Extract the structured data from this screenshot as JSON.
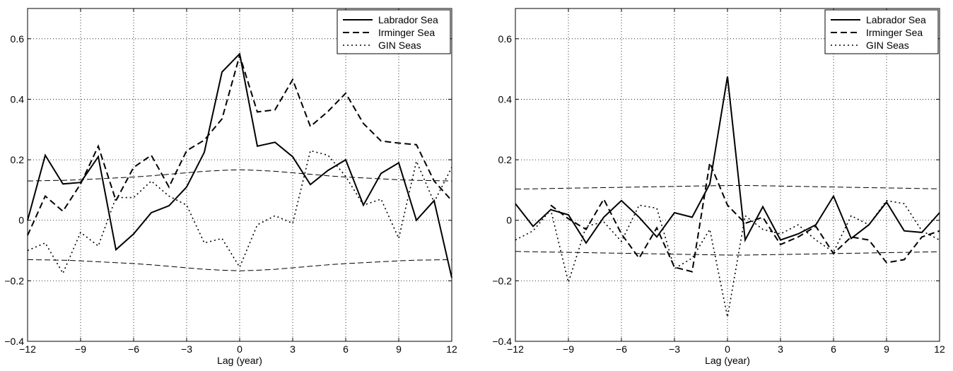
{
  "chart_data": [
    {
      "type": "line",
      "xlabel": "Lag (year)",
      "ylabel": "",
      "title": "",
      "xlim": [
        -12,
        12
      ],
      "ylim": [
        -0.4,
        0.7
      ],
      "xticks": [
        -12,
        -9,
        -6,
        -3,
        0,
        3,
        6,
        9,
        12
      ],
      "yticks": [
        -0.4,
        -0.2,
        0,
        0.2,
        0.4,
        0.6
      ],
      "xtick_labels": [
        "−12",
        "−9",
        "−6",
        "−3",
        "0",
        "3",
        "6",
        "9",
        "12"
      ],
      "ytick_labels": [
        "−0.4",
        "−0.2",
        "0",
        "0.2",
        "0.4",
        "0.6"
      ],
      "grid": true,
      "legend_position": "top-right",
      "x": [
        -12,
        -11,
        -10,
        -9,
        -8,
        -7,
        -6,
        -5,
        -4,
        -3,
        -2,
        -1,
        0,
        1,
        2,
        3,
        4,
        5,
        6,
        7,
        8,
        9,
        10,
        11,
        12
      ],
      "series": [
        {
          "name": "Labrador Sea",
          "style": "solid",
          "values": [
            0.0,
            0.215,
            0.12,
            0.125,
            0.21,
            -0.097,
            -0.045,
            0.025,
            0.048,
            0.11,
            0.225,
            0.49,
            0.55,
            0.245,
            0.258,
            0.21,
            0.118,
            0.165,
            0.2,
            0.05,
            0.155,
            0.19,
            0.0,
            0.065,
            -0.19
          ]
        },
        {
          "name": "Irminger Sea",
          "style": "dashed",
          "values": [
            -0.05,
            0.08,
            0.03,
            0.12,
            0.245,
            0.065,
            0.175,
            0.215,
            0.11,
            0.23,
            0.265,
            0.335,
            0.545,
            0.358,
            0.365,
            0.465,
            0.31,
            0.36,
            0.42,
            0.32,
            0.262,
            0.255,
            0.25,
            0.13,
            0.065
          ]
        },
        {
          "name": "GIN Seas",
          "style": "dotted",
          "values": [
            -0.1,
            -0.075,
            -0.175,
            -0.04,
            -0.085,
            0.075,
            0.075,
            0.13,
            0.08,
            0.05,
            -0.075,
            -0.06,
            -0.155,
            -0.015,
            0.015,
            -0.01,
            0.23,
            0.215,
            0.145,
            0.05,
            0.07,
            -0.06,
            0.195,
            0.06,
            0.175
          ]
        }
      ],
      "bands": [
        {
          "style": "thin-dashed",
          "values": [
            0.13,
            0.131,
            0.132,
            0.134,
            0.137,
            0.14,
            0.143,
            0.147,
            0.152,
            0.157,
            0.162,
            0.165,
            0.167,
            0.165,
            0.162,
            0.157,
            0.152,
            0.147,
            0.143,
            0.14,
            0.137,
            0.134,
            0.132,
            0.131,
            0.13
          ]
        },
        {
          "style": "thin-dashed",
          "values": [
            -0.13,
            -0.131,
            -0.132,
            -0.134,
            -0.137,
            -0.14,
            -0.143,
            -0.147,
            -0.152,
            -0.157,
            -0.162,
            -0.165,
            -0.167,
            -0.165,
            -0.162,
            -0.157,
            -0.152,
            -0.147,
            -0.143,
            -0.14,
            -0.137,
            -0.134,
            -0.132,
            -0.131,
            -0.13
          ]
        }
      ]
    },
    {
      "type": "line",
      "xlabel": "Lag (year)",
      "ylabel": "",
      "title": "",
      "xlim": [
        -12,
        12
      ],
      "ylim": [
        -0.4,
        0.7
      ],
      "xticks": [
        -12,
        -9,
        -6,
        -3,
        0,
        3,
        6,
        9,
        12
      ],
      "yticks": [
        -0.4,
        -0.2,
        0,
        0.2,
        0.4,
        0.6
      ],
      "xtick_labels": [
        "−12",
        "−9",
        "−6",
        "−3",
        "0",
        "3",
        "6",
        "9",
        "12"
      ],
      "ytick_labels": [
        "−0.4",
        "−0.2",
        "0",
        "0.2",
        "0.4",
        "0.6"
      ],
      "grid": true,
      "legend_position": "top-right",
      "x": [
        -12,
        -11,
        -10,
        -9,
        -8,
        -7,
        -6,
        -5,
        -4,
        -3,
        -2,
        -1,
        0,
        1,
        2,
        3,
        4,
        5,
        6,
        7,
        8,
        9,
        10,
        11,
        12
      ],
      "series": [
        {
          "name": "Labrador Sea",
          "style": "solid",
          "values": [
            0.055,
            -0.02,
            0.035,
            0.018,
            -0.075,
            0.01,
            0.065,
            0.01,
            -0.055,
            0.025,
            0.01,
            0.12,
            0.475,
            -0.065,
            0.045,
            -0.065,
            -0.045,
            -0.015,
            0.08,
            -0.06,
            -0.015,
            0.06,
            -0.035,
            -0.04,
            0.025
          ]
        },
        {
          "name": "Irminger Sea",
          "style": "dashed",
          "values": [
            null,
            null,
            0.05,
            0.005,
            -0.03,
            0.07,
            -0.045,
            -0.125,
            -0.025,
            -0.155,
            -0.17,
            0.19,
            0.05,
            -0.01,
            0.01,
            -0.08,
            -0.055,
            -0.02,
            -0.11,
            -0.055,
            -0.065,
            -0.14,
            -0.13,
            -0.055,
            -0.035
          ]
        },
        {
          "name": "GIN Seas",
          "style": "dotted",
          "values": [
            -0.065,
            -0.035,
            0.035,
            -0.205,
            -0.02,
            -0.005,
            -0.07,
            0.05,
            0.04,
            -0.16,
            -0.125,
            -0.03,
            -0.32,
            0.015,
            -0.03,
            -0.045,
            -0.015,
            -0.065,
            -0.105,
            0.015,
            -0.015,
            0.065,
            0.055,
            -0.035,
            -0.065
          ]
        }
      ],
      "bands": [
        {
          "style": "thin-dashed",
          "values": [
            0.103,
            0.104,
            0.105,
            0.106,
            0.107,
            0.108,
            0.109,
            0.11,
            0.111,
            0.112,
            0.113,
            0.114,
            0.115,
            0.115,
            0.114,
            0.113,
            0.112,
            0.111,
            0.11,
            0.109,
            0.108,
            0.107,
            0.106,
            0.105,
            0.104
          ]
        },
        {
          "style": "thin-dashed",
          "values": [
            -0.103,
            -0.104,
            -0.105,
            -0.106,
            -0.107,
            -0.108,
            -0.109,
            -0.11,
            -0.111,
            -0.112,
            -0.113,
            -0.114,
            -0.115,
            -0.115,
            -0.114,
            -0.113,
            -0.112,
            -0.111,
            -0.11,
            -0.109,
            -0.108,
            -0.107,
            -0.106,
            -0.105,
            -0.104
          ]
        }
      ]
    }
  ]
}
